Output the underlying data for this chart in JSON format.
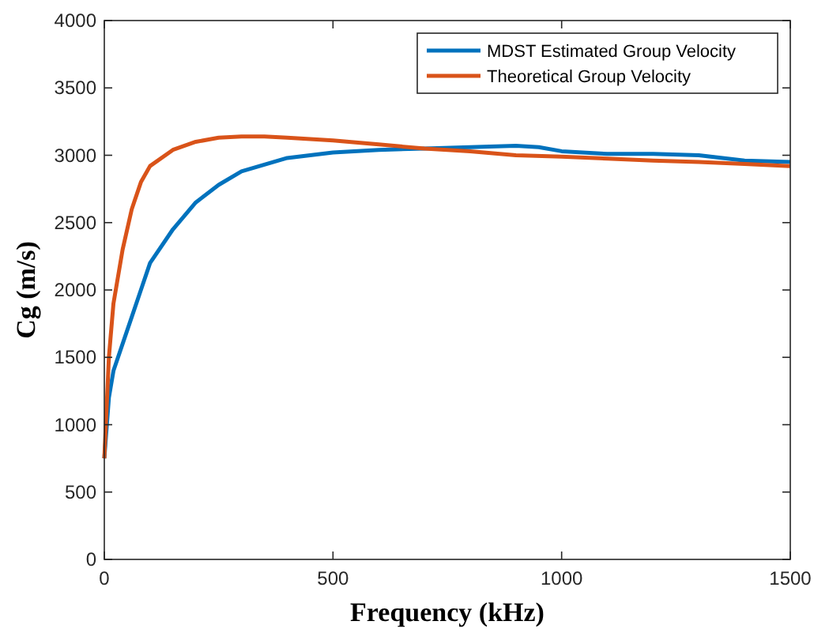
{
  "chart_data": {
    "type": "line",
    "xlabel": "Frequency (kHz)",
    "ylabel": "Cg (m/s)",
    "xlim": [
      0,
      1500
    ],
    "xticks": [
      0,
      500,
      1000,
      1500
    ],
    "ylim": [
      0,
      4000
    ],
    "yticks": [
      0,
      500,
      1000,
      1500,
      2000,
      2500,
      3000,
      3500,
      4000
    ],
    "grid": false,
    "legend": "top right",
    "marker": "none",
    "line_style": "solid",
    "series": [
      {
        "name": "MDST Estimated Group Velocity",
        "color": "#0072bd",
        "x": [
          0,
          10,
          20,
          50,
          80,
          100,
          150,
          200,
          250,
          300,
          400,
          500,
          600,
          700,
          800,
          900,
          950,
          1000,
          1100,
          1200,
          1300,
          1400,
          1500
        ],
        "values": [
          750,
          1200,
          1400,
          1700,
          2000,
          2200,
          2450,
          2650,
          2780,
          2880,
          2980,
          3020,
          3040,
          3050,
          3060,
          3070,
          3060,
          3030,
          3010,
          3010,
          3000,
          2960,
          2950
        ]
      },
      {
        "name": "Theoretical Group Velocity",
        "color": "#d95319",
        "x": [
          0,
          10,
          20,
          40,
          60,
          80,
          100,
          150,
          200,
          250,
          300,
          350,
          400,
          500,
          600,
          700,
          800,
          900,
          1000,
          1100,
          1200,
          1300,
          1400,
          1500
        ],
        "values": [
          750,
          1500,
          1900,
          2300,
          2600,
          2800,
          2920,
          3040,
          3100,
          3130,
          3140,
          3140,
          3130,
          3110,
          3080,
          3050,
          3030,
          3000,
          2990,
          2975,
          2960,
          2950,
          2935,
          2920
        ]
      }
    ]
  }
}
